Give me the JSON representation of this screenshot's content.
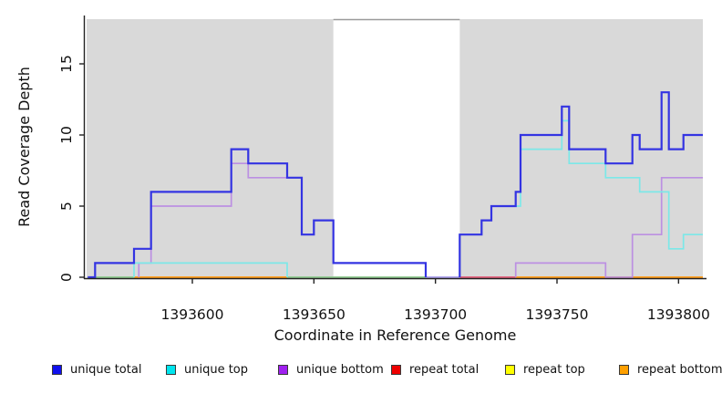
{
  "ui": {
    "x_axis_title": "Coordinate in Reference Genome",
    "y_axis_title": "Read Coverage Depth"
  },
  "legend": {
    "items": [
      {
        "label": "unique total",
        "color": "#1010EE"
      },
      {
        "label": "unique top",
        "color": "#00E5EE"
      },
      {
        "label": "unique bottom",
        "color": "#A020F0"
      },
      {
        "label": "repeat total",
        "color": "#EE0000"
      },
      {
        "label": "repeat top",
        "color": "#FFFF00"
      },
      {
        "label": "repeat bottom",
        "color": "#FFA000"
      }
    ]
  },
  "chart_data": {
    "type": "line",
    "subtype": "step-coverage",
    "title": "",
    "xlabel": "Coordinate in Reference Genome",
    "ylabel": "Read Coverage Depth",
    "xlim": [
      1393556,
      1393810
    ],
    "ylim": [
      0,
      18.2
    ],
    "x_ticks": [
      1393600,
      1393650,
      1393700,
      1393750,
      1393800
    ],
    "y_ticks": [
      0,
      5,
      10,
      15
    ],
    "grid": false,
    "legend_position": "bottom",
    "masked_regions": {
      "color": "#d9d9d9",
      "regions": [
        [
          1393556,
          1393658
        ],
        [
          1393710,
          1393810
        ]
      ],
      "gap_top_border_color": "#9a9a9a"
    },
    "series": [
      {
        "name": "unique bottom",
        "draw_color": "#BC90E2",
        "width": 1.7,
        "segments": [
          {
            "points": [
              [
                1393578,
                0
              ],
              [
                1393578,
                1
              ],
              [
                1393583,
                5
              ],
              [
                1393616,
                8
              ],
              [
                1393623,
                7
              ],
              [
                1393645,
                3
              ],
              [
                1393650,
                4
              ],
              [
                1393658,
                1
              ],
              [
                1393696,
                0
              ]
            ],
            "end": 1393696
          },
          {
            "points": [
              [
                1393733,
                0
              ],
              [
                1393733,
                1
              ],
              [
                1393770,
                0
              ],
              [
                1393781,
                3
              ],
              [
                1393793,
                7
              ]
            ],
            "end": 1393810
          }
        ]
      },
      {
        "name": "unique top",
        "draw_color": "#7CE8E8",
        "width": 1.7,
        "segments": [
          {
            "points": [
              [
                1393576,
                0
              ],
              [
                1393576,
                1
              ],
              [
                1393639,
                0
              ]
            ],
            "end": 1393639
          },
          {
            "points": [
              [
                1393710,
                0
              ],
              [
                1393710,
                3
              ],
              [
                1393719,
                4
              ],
              [
                1393723,
                5
              ],
              [
                1393735,
                9
              ],
              [
                1393752,
                11
              ],
              [
                1393755,
                8
              ],
              [
                1393770,
                7
              ],
              [
                1393784,
                6
              ],
              [
                1393796,
                2
              ],
              [
                1393802,
                3
              ]
            ],
            "end": 1393810
          }
        ]
      },
      {
        "name": "unique total",
        "draw_color": "#3434E2",
        "width": 2.2,
        "segments": [
          {
            "points": [
              [
                1393557,
                0
              ],
              [
                1393560,
                1
              ],
              [
                1393576,
                2
              ],
              [
                1393583,
                6
              ],
              [
                1393616,
                9
              ],
              [
                1393623,
                8
              ],
              [
                1393639,
                7
              ],
              [
                1393645,
                3
              ],
              [
                1393650,
                4
              ],
              [
                1393658,
                1
              ],
              [
                1393696,
                0
              ]
            ],
            "end": 1393696
          },
          {
            "points": [
              [
                1393710,
                0
              ],
              [
                1393710,
                3
              ],
              [
                1393719,
                4
              ],
              [
                1393723,
                5
              ],
              [
                1393733,
                6
              ],
              [
                1393735,
                10
              ],
              [
                1393752,
                12
              ],
              [
                1393755,
                9
              ],
              [
                1393770,
                8
              ],
              [
                1393781,
                10
              ],
              [
                1393784,
                9
              ],
              [
                1393793,
                13
              ],
              [
                1393796,
                9
              ],
              [
                1393802,
                10
              ]
            ],
            "end": 1393810
          }
        ]
      }
    ],
    "repeat_series": [
      {
        "name": "repeat total",
        "value": 0
      },
      {
        "name": "repeat top",
        "value": 0
      },
      {
        "name": "repeat bottom",
        "value": 0
      }
    ],
    "baseline_segments": [
      {
        "from": 1393557,
        "to": 1393576,
        "color": "#92CB92"
      },
      {
        "from": 1393576,
        "to": 1393639,
        "color": "#FF9E1E"
      },
      {
        "from": 1393639,
        "to": 1393696,
        "color": "#92CB92"
      },
      {
        "from": 1393696,
        "to": 1393710,
        "color": "#ADA2EC"
      },
      {
        "from": 1393710,
        "to": 1393733,
        "color": "#E2637E"
      },
      {
        "from": 1393733,
        "to": 1393810,
        "color": "#FF9E1E"
      }
    ]
  }
}
